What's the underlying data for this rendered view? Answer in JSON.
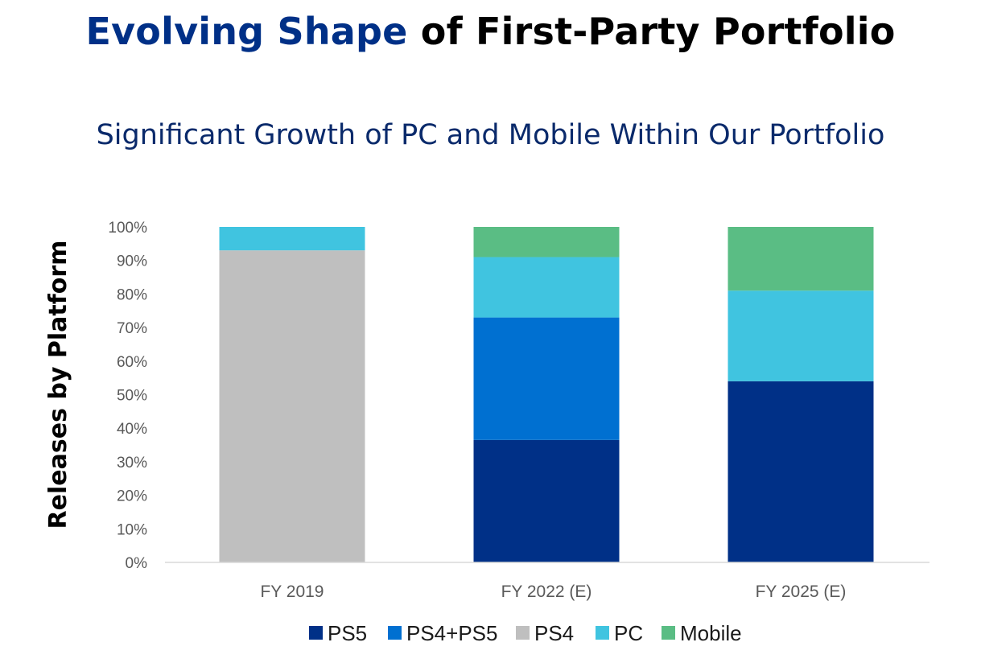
{
  "title": {
    "accent": "Evolving Shape",
    "rest": " of First-Party Portfolio"
  },
  "subtitle": "Significant Growth of PC and Mobile Within Our Portfolio",
  "colors": {
    "PS5": "#003087",
    "PS4+PS5": "#0070d1",
    "PS4": "#bfbfbf",
    "PC": "#40c4e0",
    "Mobile": "#5abd84",
    "title_accent": "#003087",
    "subtitle": "#0a2a6b"
  },
  "chart_data": {
    "type": "bar",
    "stacked": true,
    "categories": [
      "FY 2019",
      "FY 2022 (E)",
      "FY 2025 (E)"
    ],
    "series": [
      {
        "name": "PS5",
        "values": [
          0,
          36.5,
          54
        ]
      },
      {
        "name": "PS4+PS5",
        "values": [
          0,
          36.5,
          0
        ]
      },
      {
        "name": "PS4",
        "values": [
          93,
          0,
          0
        ]
      },
      {
        "name": "PC",
        "values": [
          7,
          18,
          27
        ]
      },
      {
        "name": "Mobile",
        "values": [
          0,
          9,
          19
        ]
      }
    ],
    "ylabel": "Releases by Platform",
    "xlabel": "",
    "ylim": [
      0,
      100
    ],
    "yticks": [
      "0%",
      "10%",
      "20%",
      "30%",
      "40%",
      "50%",
      "60%",
      "70%",
      "80%",
      "90%",
      "100%"
    ],
    "legend": [
      "PS5",
      "PS4+PS5",
      "PS4",
      "PC",
      "Mobile"
    ],
    "legend_position": "bottom",
    "grid": false
  }
}
